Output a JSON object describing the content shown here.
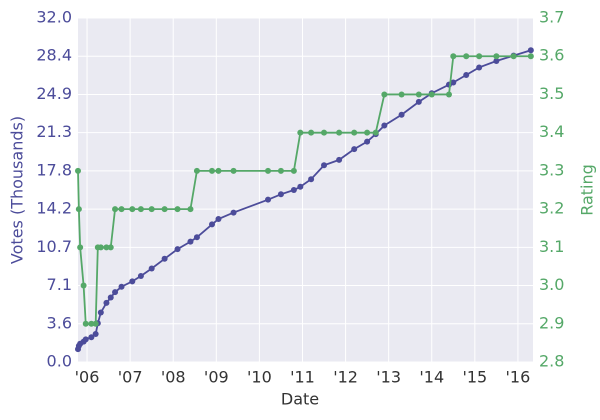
{
  "chart_data": {
    "type": "line",
    "x_label": "Date",
    "y_label": "Votes (Thousands)",
    "y2_label": "Rating",
    "x": [
      2005.79,
      2005.81,
      2005.84,
      2005.92,
      2005.97,
      2006.1,
      2006.2,
      2006.25,
      2006.32,
      2006.45,
      2006.55,
      2006.65,
      2006.8,
      2007.05,
      2007.25,
      2007.5,
      2007.8,
      2008.1,
      2008.4,
      2008.55,
      2008.9,
      2009.05,
      2009.4,
      2010.2,
      2010.5,
      2010.8,
      2010.95,
      2011.2,
      2011.5,
      2011.85,
      2012.2,
      2012.5,
      2012.7,
      2012.9,
      2013.3,
      2013.7,
      2014.0,
      2014.4,
      2014.5,
      2014.8,
      2015.1,
      2015.5,
      2015.9,
      2016.3
    ],
    "series": [
      {
        "name": "Votes (Thousands)",
        "color": "#4c4c9a",
        "axis": "y",
        "values": [
          1.2,
          1.5,
          1.7,
          1.9,
          2.1,
          2.3,
          2.6,
          3.6,
          4.6,
          5.5,
          6.0,
          6.5,
          7.0,
          7.5,
          8.0,
          8.7,
          9.6,
          10.5,
          11.2,
          11.6,
          12.8,
          13.3,
          13.9,
          15.1,
          15.6,
          16.0,
          16.3,
          17.0,
          18.3,
          18.8,
          19.8,
          20.5,
          21.2,
          22.0,
          23.0,
          24.2,
          25.0,
          25.8,
          26.0,
          26.7,
          27.4,
          28.0,
          28.5,
          29.0
        ]
      },
      {
        "name": "Rating",
        "color": "#55a868",
        "axis": "y2",
        "values": [
          3.3,
          3.2,
          3.1,
          3.0,
          2.9,
          2.9,
          2.9,
          3.1,
          3.1,
          3.1,
          3.1,
          3.2,
          3.2,
          3.2,
          3.2,
          3.2,
          3.2,
          3.2,
          3.2,
          3.3,
          3.3,
          3.3,
          3.3,
          3.3,
          3.3,
          3.3,
          3.4,
          3.4,
          3.4,
          3.4,
          3.4,
          3.4,
          3.4,
          3.5,
          3.5,
          3.5,
          3.5,
          3.5,
          3.6,
          3.6,
          3.6,
          3.6,
          3.6,
          3.6
        ]
      }
    ],
    "xlim": [
      2005.79,
      2016.35
    ],
    "xticks": [
      {
        "value": 2006,
        "label": "'06"
      },
      {
        "value": 2007,
        "label": "'07"
      },
      {
        "value": 2008,
        "label": "'08"
      },
      {
        "value": 2009,
        "label": "'09"
      },
      {
        "value": 2010,
        "label": "'10"
      },
      {
        "value": 2011,
        "label": "'11"
      },
      {
        "value": 2012,
        "label": "'12"
      },
      {
        "value": 2013,
        "label": "'13"
      },
      {
        "value": 2014,
        "label": "'14"
      },
      {
        "value": 2015,
        "label": "'15"
      },
      {
        "value": 2016,
        "label": "'16"
      }
    ],
    "ylim": [
      0,
      32
    ],
    "yticks": [
      {
        "value": 0,
        "label": "0.0"
      },
      {
        "value": 3.556,
        "label": "3.6"
      },
      {
        "value": 7.111,
        "label": "7.1"
      },
      {
        "value": 10.667,
        "label": "10.7"
      },
      {
        "value": 14.222,
        "label": "14.2"
      },
      {
        "value": 17.778,
        "label": "17.8"
      },
      {
        "value": 21.333,
        "label": "21.3"
      },
      {
        "value": 24.889,
        "label": "24.9"
      },
      {
        "value": 28.444,
        "label": "28.4"
      },
      {
        "value": 32,
        "label": "32.0"
      }
    ],
    "y2lim": [
      2.8,
      3.7
    ],
    "y2ticks": [
      2.8,
      2.9,
      {
        "value": 3,
        "label": "3.0"
      },
      3.1,
      3.2,
      3.3,
      3.4,
      3.5,
      3.6,
      3.7
    ],
    "grid": true
  }
}
